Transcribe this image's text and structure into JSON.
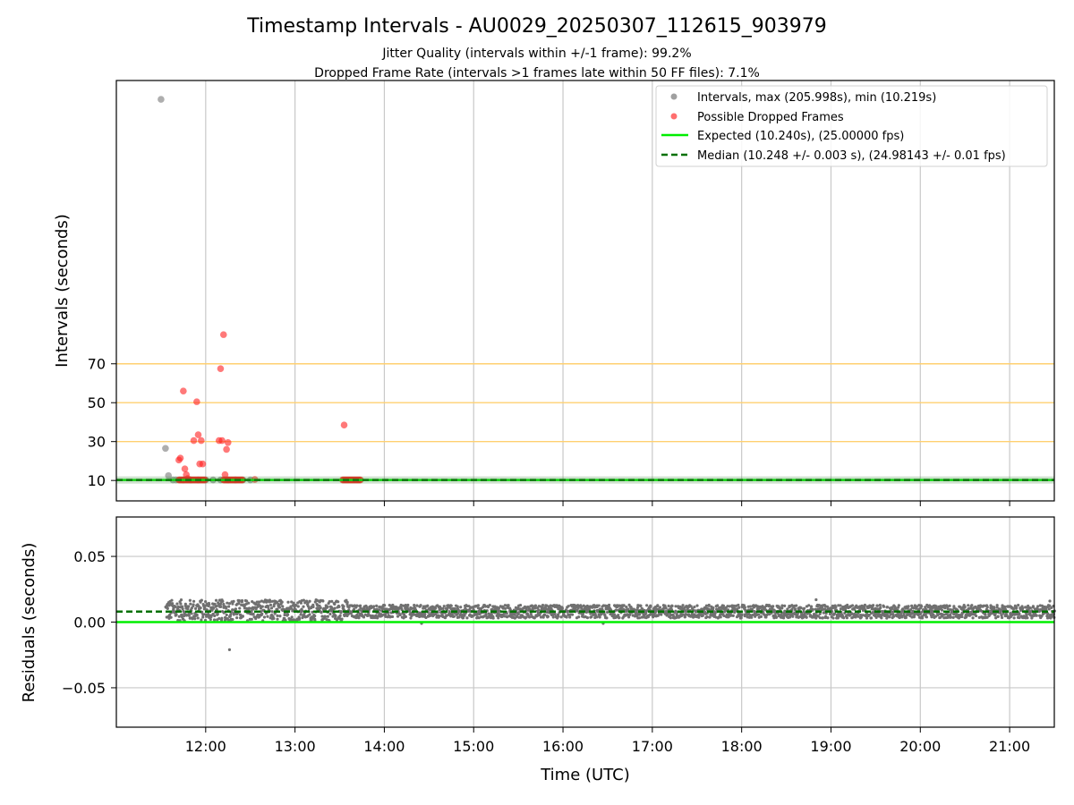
{
  "figure": {
    "title": "Timestamp Intervals - AU0029_20250307_112615_903979",
    "subtitle_jitter": "Jitter Quality (intervals within +/-1 frame): 99.2%",
    "subtitle_dropped": "Dropped Frame Rate (intervals >1 frames late within 50 FF files): 7.1%"
  },
  "colors": {
    "intervals": "#a0a0a0",
    "dropped": "#ff2020",
    "expected": "#00ee00",
    "median": "#007000",
    "threshold": "#ffd070",
    "residual": "#707070",
    "grid": "#c8c8c8"
  },
  "chart_data": [
    {
      "type": "scatter",
      "ylabel": "Intervals (seconds)",
      "y_ticks": [
        10,
        30,
        50,
        70
      ],
      "y_tick_labels": [
        "10",
        "30",
        "50",
        "70"
      ],
      "ylim": [
        -0.5,
        215.7
      ],
      "xlim": [
        "11:00",
        "21:30"
      ],
      "threshold_lines": [
        30,
        50,
        70
      ],
      "expected_value": 10.24,
      "median_value": 10.248,
      "grid": true,
      "legend_position": "upper right",
      "legend": [
        {
          "label": "Intervals, max (205.998s), min (10.219s)",
          "marker": "gray-dot"
        },
        {
          "label": "Possible Dropped Frames",
          "marker": "red-dot"
        },
        {
          "label": "Expected (10.240s), (25.00000 fps)",
          "marker": "green-line"
        },
        {
          "label": "Median (10.248 +/- 0.003 s), (24.98143 +/- 0.01 fps)",
          "marker": "dashed-dark-green-line"
        }
      ],
      "series": [
        {
          "name": "Intervals, max (205.998s), min (10.219s)",
          "x": [
            "11:30",
            "11:33",
            "11:35",
            "11:38",
            "11:40",
            "11:45",
            "11:50",
            "11:55",
            "12:00",
            "12:05",
            "12:10",
            "12:15",
            "12:20",
            "12:25",
            "12:30"
          ],
          "y": [
            206.0,
            26.5,
            12.5,
            10.3,
            10.3,
            10.3,
            10.3,
            10.3,
            10.3,
            10.3,
            10.3,
            10.3,
            10.3,
            10.3,
            10.3
          ]
        },
        {
          "name": "Possible Dropped Frames",
          "x": [
            "11:42",
            "11:43",
            "11:45",
            "11:46",
            "11:47",
            "11:48",
            "11:52",
            "11:54",
            "11:55",
            "11:56",
            "11:57",
            "11:58",
            "12:09",
            "12:10",
            "12:11",
            "12:12",
            "12:13",
            "12:14",
            "12:15",
            "12:33",
            "13:33"
          ],
          "y": [
            20.5,
            21.5,
            56.0,
            16.0,
            13.0,
            11.0,
            30.5,
            50.5,
            33.5,
            18.5,
            30.5,
            18.5,
            30.5,
            67.5,
            30.5,
            85.0,
            13.0,
            26.0,
            29.5,
            10.5,
            38.5
          ]
        }
      ],
      "dropped_clusters": [
        {
          "start": "11:42",
          "end": "12:00",
          "y": 10.3
        },
        {
          "start": "12:12",
          "end": "12:25",
          "y": 10.3
        },
        {
          "start": "13:32",
          "end": "13:44",
          "y": 10.3
        }
      ]
    },
    {
      "type": "scatter",
      "xlabel": "Time (UTC)",
      "ylabel": "Residuals (seconds)",
      "x_ticks": [
        "12:00",
        "13:00",
        "14:00",
        "15:00",
        "16:00",
        "17:00",
        "18:00",
        "19:00",
        "20:00",
        "21:00"
      ],
      "y_ticks": [
        -0.05,
        0.0,
        0.05
      ],
      "y_tick_labels": [
        "−0.05",
        "0.00",
        "0.05"
      ],
      "ylim": [
        -0.08,
        0.08
      ],
      "xlim": [
        "11:00",
        "21:30"
      ],
      "expected_residual": 0.0,
      "median_residual": 0.008,
      "grid": true,
      "residual_bands": [
        {
          "start": "11:33",
          "end": "13:35",
          "low": 0.001,
          "high": 0.017
        },
        {
          "start": "13:35",
          "end": "21:30",
          "low": 0.003,
          "high": 0.013
        }
      ],
      "outliers": [
        {
          "x": "12:16",
          "y": -0.021
        },
        {
          "x": "14:25",
          "y": -0.001
        },
        {
          "x": "16:27",
          "y": -0.001
        },
        {
          "x": "18:50",
          "y": 0.017
        },
        {
          "x": "21:27",
          "y": 0.016
        }
      ]
    }
  ]
}
